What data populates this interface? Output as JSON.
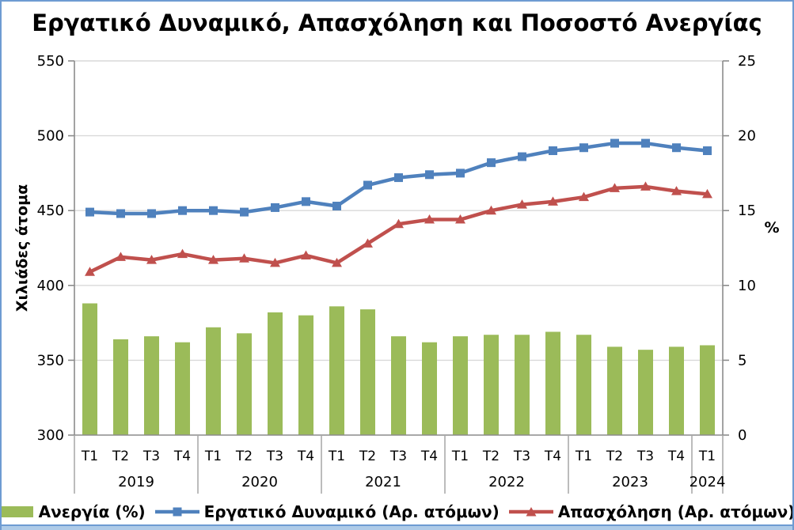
{
  "title": "Εργατικό Δυναμικό, Απασχόληση και Ποσοστό Ανεργίας",
  "chart_data": {
    "type": "combo bar + line, dual axis",
    "x_quarters": [
      "Τ1",
      "Τ2",
      "Τ3",
      "Τ4",
      "Τ1",
      "Τ2",
      "Τ3",
      "Τ4",
      "Τ1",
      "Τ2",
      "Τ3",
      "Τ4",
      "Τ1",
      "Τ2",
      "Τ3",
      "Τ4",
      "Τ1",
      "Τ2",
      "Τ3",
      "Τ4",
      "Τ1"
    ],
    "x_years": [
      {
        "label": "2019",
        "span": 4
      },
      {
        "label": "2020",
        "span": 4
      },
      {
        "label": "2021",
        "span": 4
      },
      {
        "label": "2022",
        "span": 4
      },
      {
        "label": "2023",
        "span": 4
      },
      {
        "label": "2024",
        "span": 1
      }
    ],
    "left_axis": {
      "title": "Χιλιάδες άτομα",
      "min": 300,
      "max": 550,
      "step": 50,
      "tick_labels": [
        "300",
        "350",
        "400",
        "450",
        "500",
        "550"
      ]
    },
    "right_axis": {
      "title": "%",
      "min": 0,
      "max": 25,
      "step": 5,
      "tick_labels": [
        "0",
        "5",
        "10",
        "15",
        "20",
        "25"
      ]
    },
    "grid": true,
    "legend_position": "bottom",
    "series": [
      {
        "name": "Ανεργία (%)",
        "type": "bar",
        "axis": "right",
        "color": "#9BBB59",
        "values": [
          8.8,
          6.4,
          6.6,
          6.2,
          7.2,
          6.8,
          8.2,
          8.0,
          8.6,
          8.4,
          6.6,
          6.2,
          6.6,
          6.7,
          6.7,
          6.9,
          6.7,
          5.9,
          5.7,
          5.9,
          6.0
        ]
      },
      {
        "name": "Εργατικό Δυναμικό (Αρ. ατόμων)",
        "type": "line",
        "marker": "square",
        "axis": "left",
        "color": "#4F81BD",
        "values": [
          449,
          448,
          448,
          450,
          450,
          449,
          452,
          456,
          453,
          467,
          472,
          474,
          475,
          482,
          486,
          490,
          492,
          495,
          495,
          492,
          490
        ]
      },
      {
        "name": "Απασχόληση (Αρ. ατόμων)",
        "type": "line",
        "marker": "triangle",
        "axis": "left",
        "color": "#C0504D",
        "values": [
          409,
          419,
          417,
          421,
          417,
          418,
          415,
          420,
          415,
          428,
          441,
          444,
          444,
          450,
          454,
          456,
          459,
          465,
          466,
          463,
          461
        ]
      }
    ]
  },
  "colors": {
    "bar": "#9BBB59",
    "labor_force_line": "#4F81BD",
    "employment_line": "#C0504D",
    "gridline": "#D9D9D9",
    "axis_line": "#8C8C8C",
    "year_separator": "#A6A6A6",
    "frame_border": "#6E9BD2",
    "bottom_strip": "#AECBE8",
    "background": "#FFFFFF",
    "text": "#000000"
  }
}
